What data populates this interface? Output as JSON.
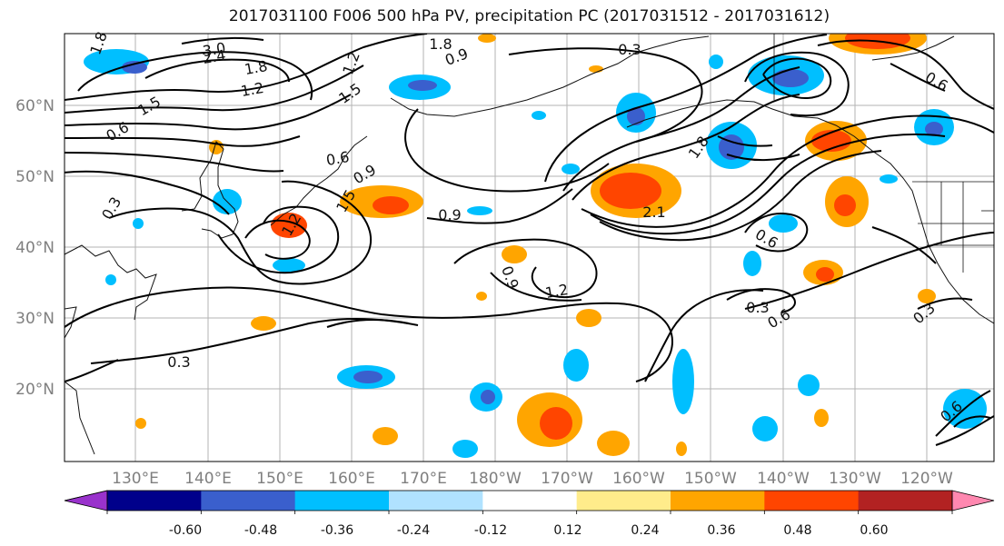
{
  "title": "2017031100 F006 500 hPa PV, precipitation PC (2017031512 - 2017031612)",
  "lat_labels": [
    "60°N",
    "50°N",
    "40°N",
    "30°N",
    "20°N"
  ],
  "lon_labels": [
    "130°E",
    "140°E",
    "150°E",
    "160°E",
    "170°E",
    "180°W",
    "170°W",
    "160°W",
    "150°W",
    "140°W",
    "130°W",
    "120°W"
  ],
  "contour_labels": [
    "1.8",
    "3.0",
    "2.4",
    "1.8",
    "1.2",
    "1.5",
    "0.6",
    "1.2",
    "1.5",
    "1.8",
    "0.9",
    "0.3",
    "0.6",
    "0.9",
    "1.5",
    "2.1",
    "0.9",
    "1.2",
    "0.9",
    "1.2",
    "0.3",
    "0.3",
    "0.6",
    "0.3",
    "0.6",
    "0.3",
    "0.6",
    "1.8",
    "0.6"
  ],
  "colorbar": {
    "tick_labels": [
      "-0.60",
      "-0.48",
      "-0.36",
      "-0.24",
      "-0.12",
      "0.12",
      "0.24",
      "0.36",
      "0.48",
      "0.60"
    ],
    "colors": [
      "#9932cc",
      "#00008b",
      "#3a5fcd",
      "#00bfff",
      "#b0e2ff",
      "#ffffff",
      "#ffec8b",
      "#ffa500",
      "#ff4500",
      "#b22222",
      "#ff88b0"
    ]
  }
}
